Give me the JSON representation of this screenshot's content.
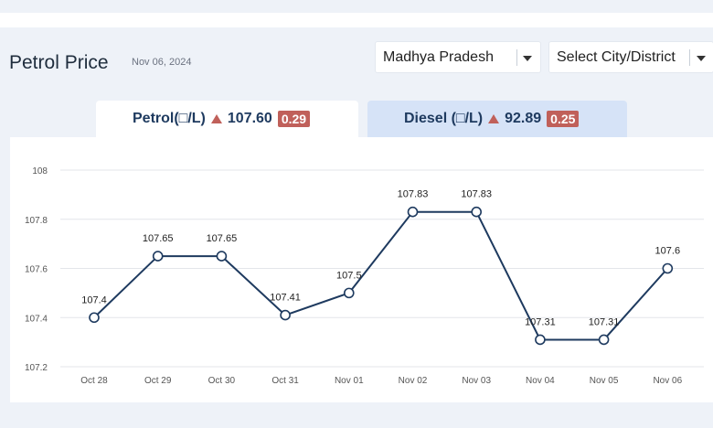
{
  "header": {
    "title": "Petrol Price",
    "date": "Nov 06, 2024",
    "state_select": "Madhya Pradesh",
    "city_select": "Select City/District"
  },
  "tabs": [
    {
      "label": "Petrol(□/L)",
      "price": "107.60",
      "change": "0.29"
    },
    {
      "label": "Diesel (□/L)",
      "price": "92.89",
      "change": "0.25"
    }
  ],
  "colors": {
    "line": "#1e3a5f",
    "up_badge": "#c0605a",
    "active_tab": "#ffffff",
    "inactive_tab": "#d6e3f7"
  },
  "chart_data": {
    "type": "line",
    "categories": [
      "Oct 28",
      "Oct 29",
      "Oct 30",
      "Oct 31",
      "Nov 01",
      "Nov 02",
      "Nov 03",
      "Nov 04",
      "Nov 05",
      "Nov 06"
    ],
    "values": [
      107.4,
      107.65,
      107.65,
      107.41,
      107.5,
      107.83,
      107.83,
      107.31,
      107.31,
      107.6
    ],
    "labels": [
      "107.4",
      "107.65",
      "107.65",
      "107.41",
      "107.5",
      "107.83",
      "107.83",
      "107.31",
      "107.31",
      "107.6"
    ],
    "yticks": [
      "107.2",
      "107.4",
      "107.6",
      "107.8",
      "108"
    ],
    "ylim": [
      107.2,
      108
    ],
    "grid": true
  }
}
